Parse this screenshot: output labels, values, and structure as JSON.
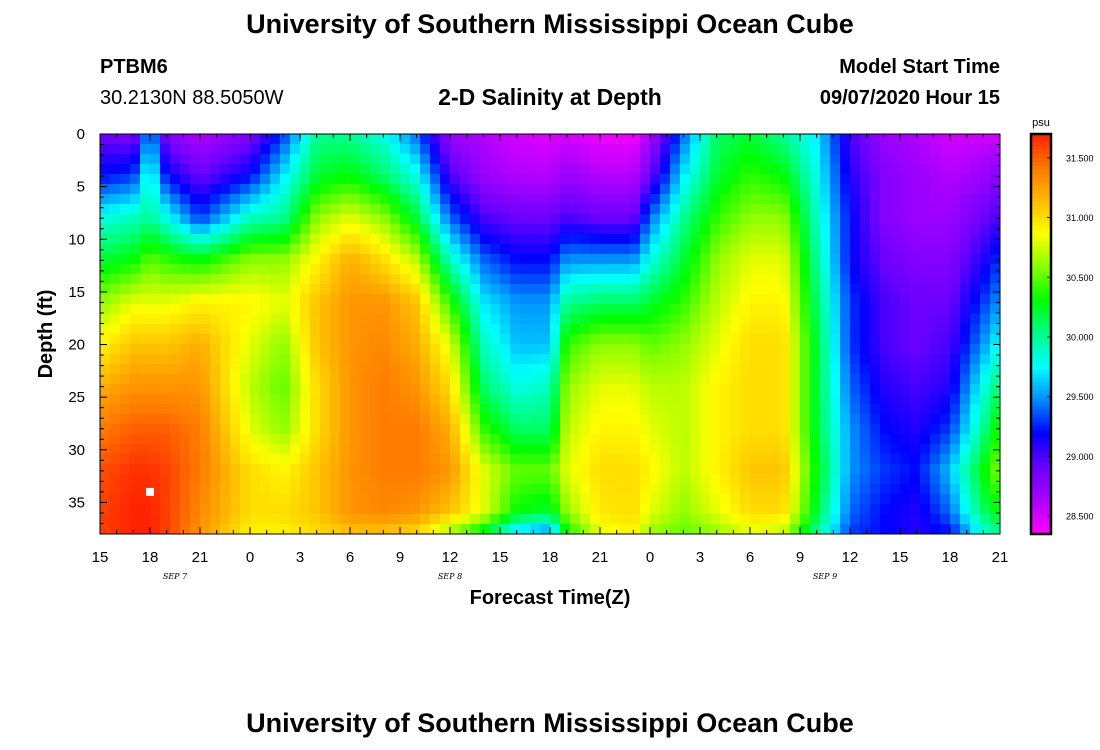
{
  "header": {
    "title_top": "University of Southern Mississippi Ocean Cube",
    "title_bottom": "University of Southern Mississippi Ocean Cube",
    "station": "PTBM6",
    "coords": "30.2130N 88.5050W",
    "plot_title": "2-D Salinity at Depth",
    "model_label": "Model Start Time",
    "model_time": "09/07/2020 Hour 15"
  },
  "chart_data": {
    "type": "heatmap",
    "title": "2-D Salinity at Depth",
    "xlabel": "Forecast Time(Z)",
    "ylabel": "Depth (ft)",
    "x_hours": [
      0,
      3,
      6,
      9,
      12,
      15,
      18,
      21,
      24,
      27,
      30,
      33,
      36,
      39,
      42,
      45,
      48,
      51,
      54
    ],
    "x_tick_labels": [
      "15",
      "18",
      "21",
      "0",
      "3",
      "6",
      "9",
      "12",
      "15",
      "18",
      "21",
      "0",
      "3",
      "6",
      "9",
      "12",
      "15",
      "18",
      "21"
    ],
    "date_labels": [
      {
        "hour": 4.5,
        "text": "SEP 7"
      },
      {
        "hour": 21,
        "text": "SEP 8"
      },
      {
        "hour": 43.5,
        "text": "SEP 9"
      }
    ],
    "xlim": [
      0,
      54
    ],
    "y_ticks": [
      0,
      5,
      10,
      15,
      20,
      25,
      30,
      35
    ],
    "ylim": [
      0,
      38
    ],
    "colorbar": {
      "unit": "psu",
      "min": 28.35,
      "max": 31.7,
      "tick_values": [
        28.5,
        29.0,
        29.5,
        30.0,
        30.5,
        31.0,
        31.5
      ],
      "tick_labels": [
        "28.500",
        "29.000",
        "29.500",
        "30.000",
        "30.500",
        "31.000",
        "31.500"
      ]
    },
    "depths": [
      0,
      4,
      8,
      12,
      16,
      20,
      24,
      28,
      32,
      36,
      38
    ],
    "salinity_columns": [
      {
        "hour": 0,
        "values": [
          28.9,
          29.2,
          29.8,
          30.2,
          30.6,
          30.9,
          31.2,
          31.4,
          31.55,
          31.6,
          31.6
        ]
      },
      {
        "hour": 2,
        "values": [
          28.8,
          29.3,
          29.9,
          30.3,
          30.8,
          31.1,
          31.3,
          31.5,
          31.65,
          31.7,
          31.7
        ]
      },
      {
        "hour": 3,
        "values": [
          29.6,
          29.9,
          30.0,
          30.5,
          30.8,
          31.1,
          31.3,
          31.5,
          31.65,
          31.7,
          31.7
        ]
      },
      {
        "hour": 4,
        "values": [
          28.8,
          29.2,
          29.8,
          30.4,
          30.8,
          31.1,
          31.3,
          31.5,
          31.6,
          31.6,
          31.6
        ]
      },
      {
        "hour": 6,
        "values": [
          28.6,
          28.9,
          29.3,
          30.3,
          30.9,
          31.2,
          31.3,
          31.4,
          31.4,
          31.35,
          31.3
        ]
      },
      {
        "hour": 9,
        "values": [
          28.8,
          29.2,
          29.9,
          30.6,
          30.9,
          30.8,
          30.7,
          30.8,
          31.0,
          31.0,
          30.9
        ]
      },
      {
        "hour": 11,
        "values": [
          29.3,
          29.7,
          30.0,
          30.6,
          30.8,
          30.6,
          30.5,
          30.6,
          30.9,
          31.0,
          30.9
        ]
      },
      {
        "hour": 13,
        "values": [
          30.0,
          30.2,
          30.6,
          30.9,
          31.1,
          31.1,
          31.0,
          31.0,
          31.1,
          31.1,
          31.0
        ]
      },
      {
        "hour": 15,
        "values": [
          30.0,
          30.3,
          30.8,
          31.2,
          31.3,
          31.3,
          31.3,
          31.3,
          31.3,
          31.3,
          31.1
        ]
      },
      {
        "hour": 17,
        "values": [
          29.8,
          30.1,
          30.6,
          31.0,
          31.3,
          31.35,
          31.4,
          31.4,
          31.4,
          31.35,
          31.1
        ]
      },
      {
        "hour": 19,
        "values": [
          29.4,
          29.8,
          30.2,
          30.7,
          31.1,
          31.2,
          31.3,
          31.4,
          31.4,
          31.3,
          31.0
        ]
      },
      {
        "hour": 21,
        "values": [
          28.7,
          29.0,
          29.4,
          29.9,
          30.4,
          30.8,
          31.0,
          31.2,
          31.3,
          31.1,
          30.6
        ]
      },
      {
        "hour": 23,
        "values": [
          28.6,
          28.7,
          29.0,
          29.4,
          29.7,
          29.9,
          30.1,
          30.4,
          30.8,
          30.8,
          30.2
        ]
      },
      {
        "hour": 25,
        "values": [
          28.5,
          28.6,
          28.9,
          29.2,
          29.5,
          29.6,
          29.8,
          30.1,
          30.5,
          30.3,
          29.6
        ]
      },
      {
        "hour": 27,
        "values": [
          28.45,
          28.6,
          28.9,
          29.2,
          29.5,
          29.6,
          29.9,
          30.1,
          30.5,
          30.2,
          29.4
        ]
      },
      {
        "hour": 28,
        "values": [
          28.5,
          28.7,
          29.0,
          29.5,
          30.0,
          30.4,
          30.6,
          30.7,
          30.8,
          30.6,
          30.3
        ]
      },
      {
        "hour": 30,
        "values": [
          28.4,
          28.6,
          28.9,
          29.5,
          30.1,
          30.6,
          30.8,
          30.9,
          31.0,
          30.95,
          30.8
        ]
      },
      {
        "hour": 32,
        "values": [
          28.4,
          28.6,
          28.9,
          29.5,
          30.1,
          30.6,
          30.8,
          30.9,
          31.0,
          31.0,
          30.9
        ]
      },
      {
        "hour": 33,
        "values": [
          28.6,
          28.9,
          29.4,
          29.8,
          30.2,
          30.5,
          30.7,
          30.8,
          30.9,
          30.8,
          30.6
        ]
      },
      {
        "hour": 35,
        "values": [
          29.4,
          29.7,
          30.0,
          30.2,
          30.4,
          30.6,
          30.7,
          30.7,
          30.7,
          30.6,
          30.5
        ]
      },
      {
        "hour": 37,
        "values": [
          30.1,
          30.2,
          30.4,
          30.6,
          30.7,
          30.8,
          30.9,
          30.9,
          30.9,
          30.8,
          30.6
        ]
      },
      {
        "hour": 39,
        "values": [
          30.2,
          30.4,
          30.6,
          30.8,
          30.9,
          31.0,
          31.0,
          31.0,
          31.1,
          31.0,
          30.8
        ]
      },
      {
        "hour": 41,
        "values": [
          30.0,
          30.3,
          30.6,
          30.8,
          30.9,
          31.0,
          31.0,
          31.0,
          31.1,
          31.0,
          30.7
        ]
      },
      {
        "hour": 43,
        "values": [
          29.7,
          29.8,
          29.9,
          30.0,
          30.1,
          30.2,
          30.2,
          30.2,
          30.3,
          30.2,
          30.0
        ]
      },
      {
        "hour": 45,
        "values": [
          29.0,
          29.1,
          29.2,
          29.2,
          29.3,
          29.3,
          29.4,
          29.5,
          29.5,
          29.4,
          29.3
        ]
      },
      {
        "hour": 47,
        "values": [
          28.7,
          28.8,
          28.8,
          28.9,
          29.0,
          29.0,
          29.1,
          29.2,
          29.3,
          29.2,
          29.2
        ]
      },
      {
        "hour": 49,
        "values": [
          28.6,
          28.7,
          28.7,
          28.8,
          28.9,
          28.9,
          29.0,
          29.1,
          29.2,
          29.1,
          29.1
        ]
      },
      {
        "hour": 51,
        "values": [
          28.5,
          28.6,
          28.7,
          28.8,
          28.9,
          29.0,
          29.1,
          29.3,
          29.6,
          29.4,
          29.2
        ]
      },
      {
        "hour": 53,
        "values": [
          28.5,
          28.7,
          28.9,
          29.1,
          29.3,
          29.5,
          29.8,
          30.0,
          30.3,
          30.1,
          29.8
        ]
      },
      {
        "hour": 54,
        "values": [
          28.5,
          28.8,
          29.0,
          29.3,
          29.5,
          29.8,
          30.1,
          30.4,
          30.6,
          30.3,
          30.0
        ]
      }
    ],
    "markers": [
      {
        "hour": 3,
        "depth": 34,
        "color": "#ffffff"
      }
    ]
  },
  "colors": {
    "scale": [
      "#ff00ff",
      "#aa00ff",
      "#6a00ff",
      "#0000ff",
      "#0088ff",
      "#00ffff",
      "#00ff88",
      "#00ff00",
      "#88ff00",
      "#ffff00",
      "#ffbb00",
      "#ff7700",
      "#ff2200"
    ]
  }
}
